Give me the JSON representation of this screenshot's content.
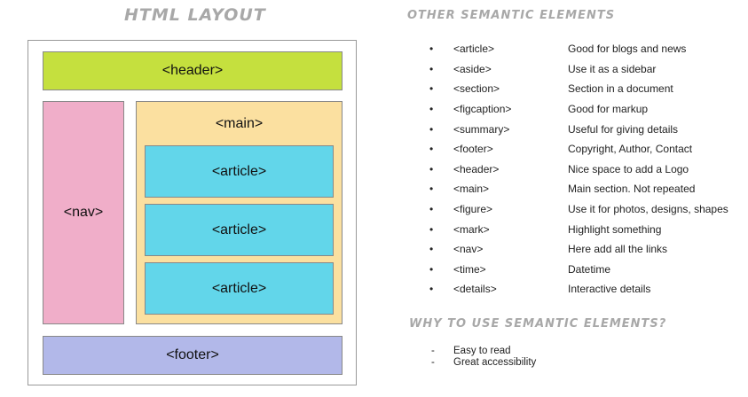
{
  "layout": {
    "title": "HTML LAYOUT",
    "header": "<header>",
    "nav": "<nav>",
    "main": "<main>",
    "articles": [
      "<article>",
      "<article>",
      "<article>"
    ],
    "footer": "<footer>"
  },
  "semantic": {
    "title": "OTHER SEMANTIC ELEMENTS",
    "bullet": "•",
    "items": [
      {
        "tag": "<article>",
        "desc": "Good for blogs and news"
      },
      {
        "tag": "<aside>",
        "desc": "Use it as a sidebar"
      },
      {
        "tag": "<section>",
        "desc": "Section in a document"
      },
      {
        "tag": "<figcaption>",
        "desc": "Good for markup"
      },
      {
        "tag": "<summary>",
        "desc": "Useful for giving details"
      },
      {
        "tag": "<footer>",
        "desc": "Copyright, Author, Contact"
      },
      {
        "tag": "<header>",
        "desc": "Nice space to add a Logo"
      },
      {
        "tag": "<main>",
        "desc": "Main section. Not repeated"
      },
      {
        "tag": "<figure>",
        "desc": "Use it for photos, designs, shapes"
      },
      {
        "tag": "<mark>",
        "desc": "Highlight something"
      },
      {
        "tag": "<nav>",
        "desc": "Here add all the links"
      },
      {
        "tag": "<time>",
        "desc": "Datetime"
      },
      {
        "tag": "<details>",
        "desc": "Interactive details"
      }
    ]
  },
  "why": {
    "title": "WHY TO USE SEMANTIC ELEMENTS?",
    "dash": "-",
    "items": [
      "Easy to read",
      "Great accessibility"
    ]
  },
  "colors": {
    "header": "#c5e03e",
    "nav": "#f0aec9",
    "main": "#fbe0a0",
    "article": "#62d6ea",
    "footer": "#b2b8e9",
    "title_gray": "#a8a8a8"
  }
}
